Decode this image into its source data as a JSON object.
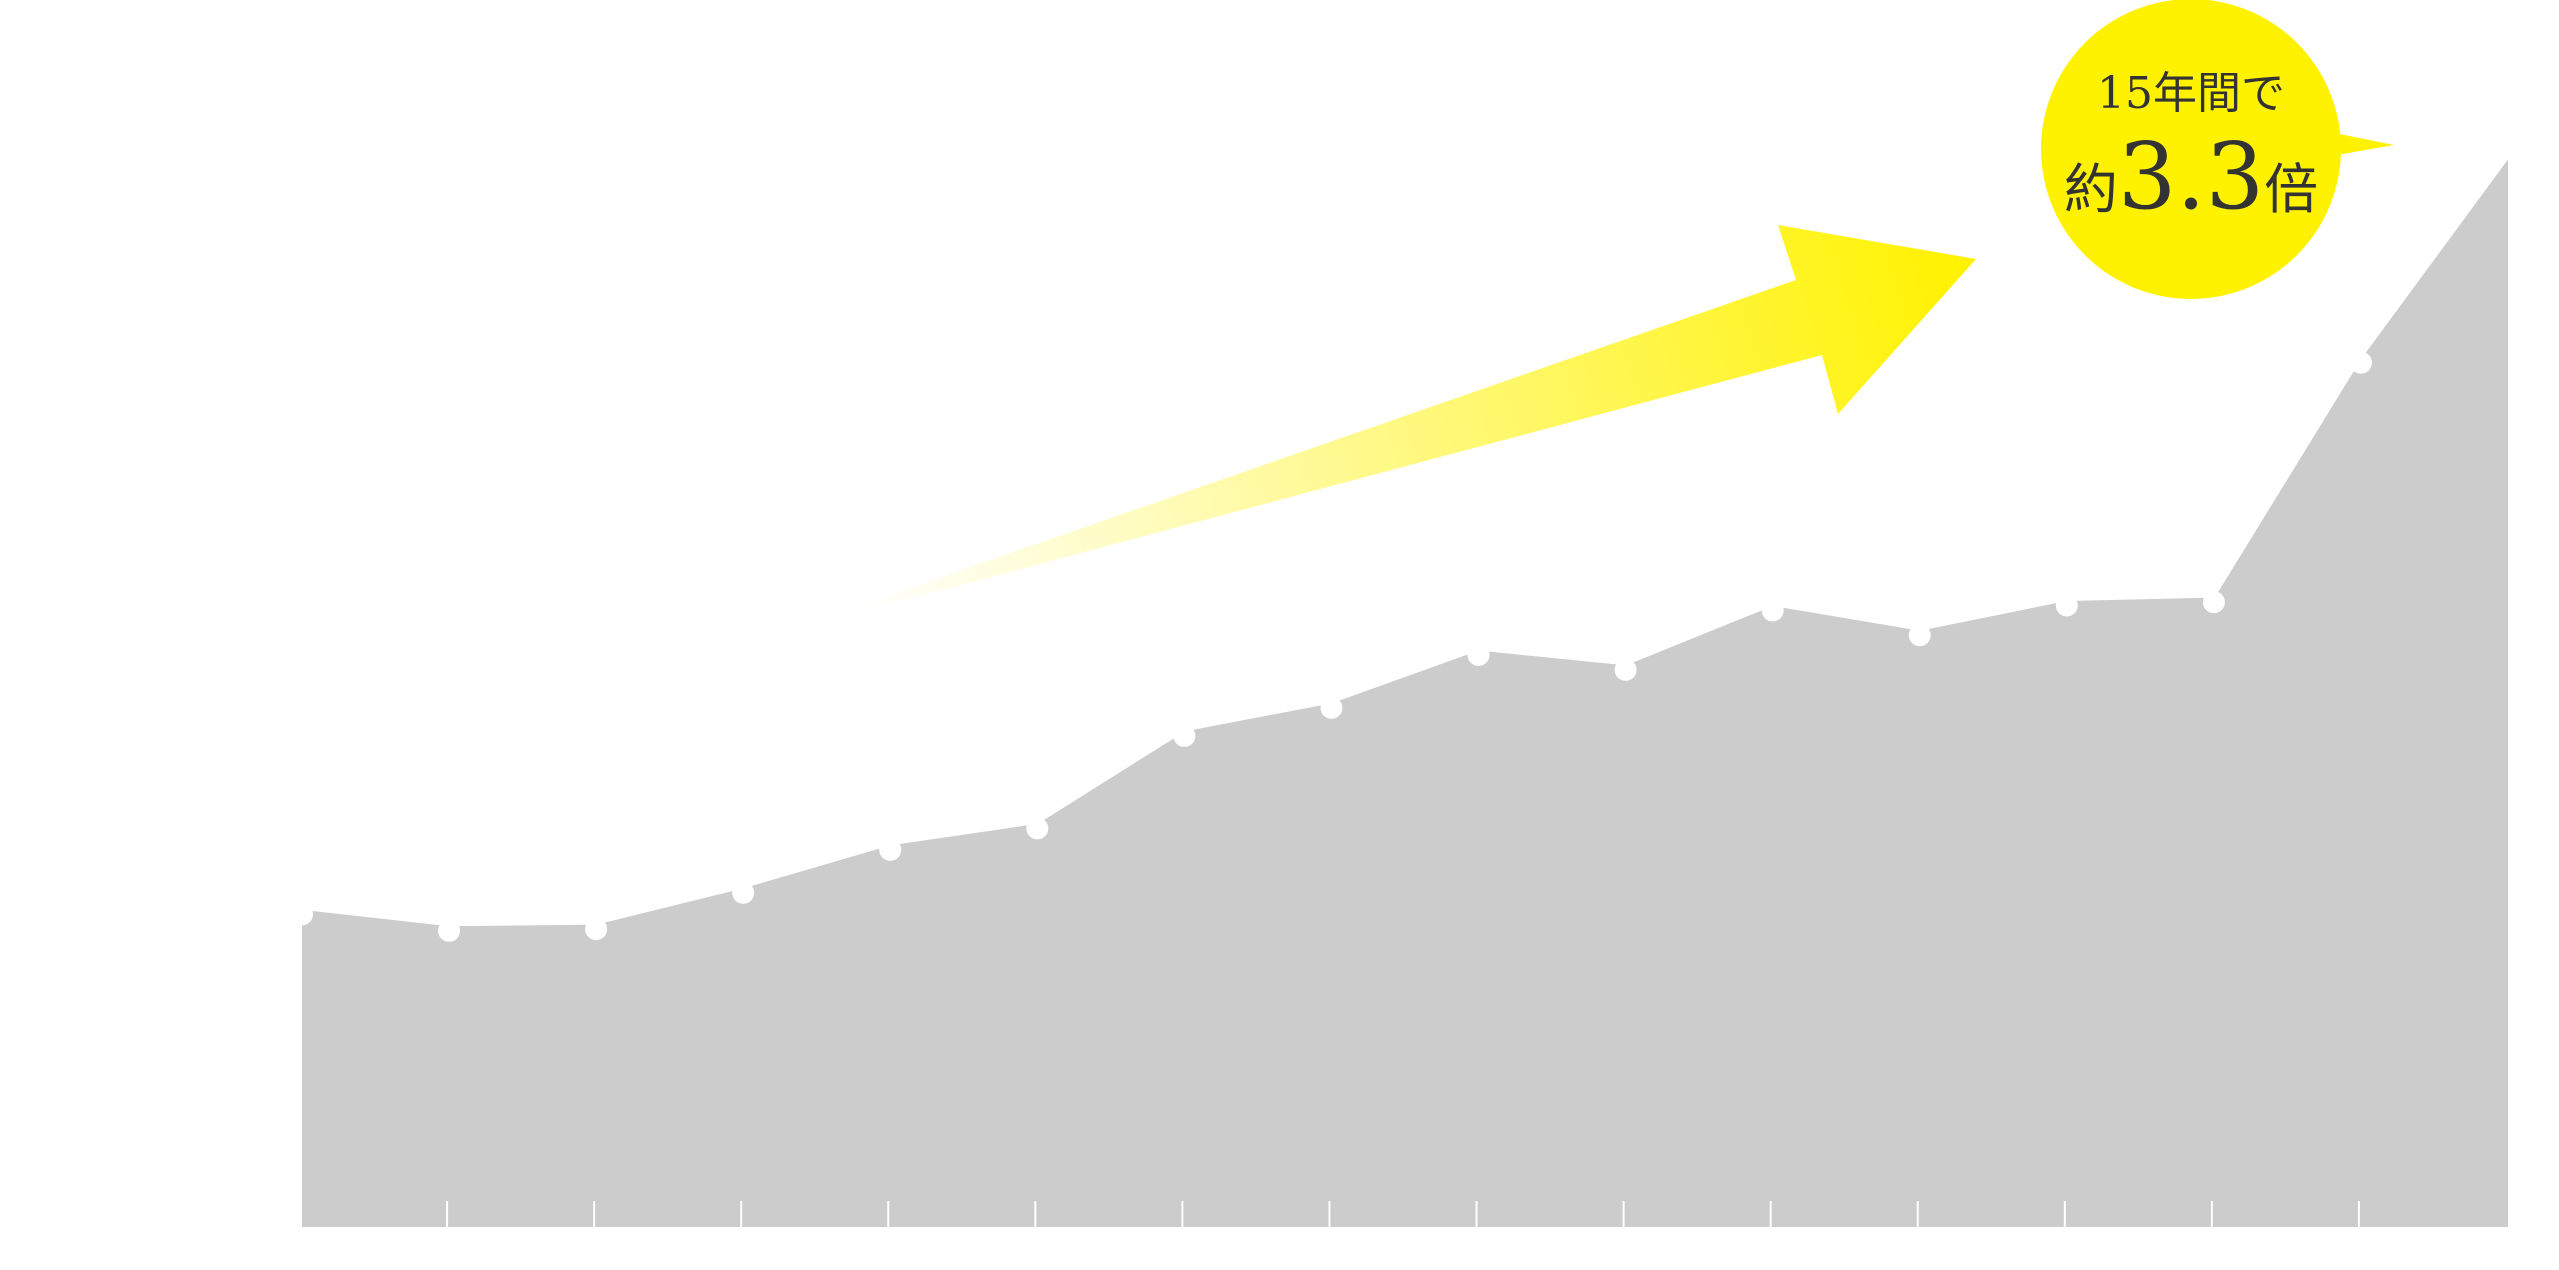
{
  "chart_data": {
    "type": "area",
    "categories": [
      null,
      null,
      null,
      null,
      null,
      null,
      null,
      null,
      null,
      null,
      null,
      null,
      null,
      null,
      null,
      null
    ],
    "values": [
      193,
      183,
      184,
      206,
      232,
      245,
      301,
      318,
      350,
      341,
      377,
      362,
      380,
      382,
      527,
      648
    ],
    "ylim": [
      0,
      743
    ],
    "color": "#cccccc",
    "point_color": "#ffffff",
    "annotation": {
      "line1": "15年間で",
      "prefix": "約",
      "value": "3.3",
      "suffix": "倍",
      "color": "#fff200"
    }
  }
}
